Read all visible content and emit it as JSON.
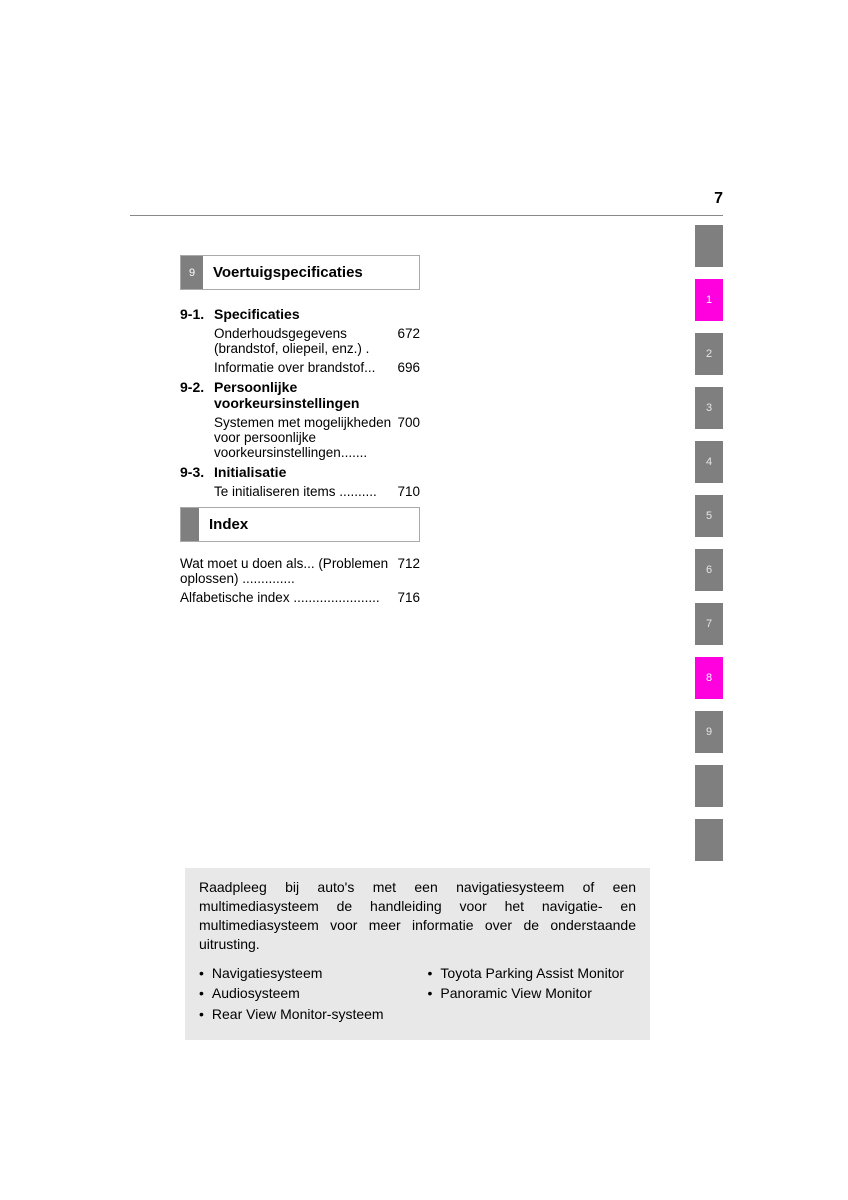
{
  "page_number": "7",
  "section9": {
    "number": "9",
    "title": "Voertuigspecificaties",
    "subs": [
      {
        "num": "9-1.",
        "title": "Specificaties",
        "entries": [
          {
            "label": "Onderhoudsgegevens (brandstof, oliepeil, enz.) .",
            "page": "672"
          },
          {
            "label": "Informatie over brandstof...",
            "page": "696"
          }
        ]
      },
      {
        "num": "9-2.",
        "title": "Persoonlijke voorkeursinstellingen",
        "entries": [
          {
            "label": "Systemen met mogelijkheden voor persoonlijke voorkeursinstellingen.......",
            "page": "700"
          }
        ]
      },
      {
        "num": "9-3.",
        "title": "Initialisatie",
        "entries": [
          {
            "label": "Te initialiseren items ..........",
            "page": "710"
          }
        ]
      }
    ]
  },
  "index": {
    "title": "Index",
    "entries": [
      {
        "label": "Wat moet u doen als... (Problemen oplossen) ..............",
        "page": "712"
      },
      {
        "label": "Alfabetische index .......................",
        "page": "716"
      }
    ]
  },
  "tabs": [
    {
      "label": "",
      "style": "blank"
    },
    {
      "label": "1",
      "style": "pink"
    },
    {
      "label": "2",
      "style": "grey"
    },
    {
      "label": "3",
      "style": "grey"
    },
    {
      "label": "4",
      "style": "grey"
    },
    {
      "label": "5",
      "style": "grey"
    },
    {
      "label": "6",
      "style": "grey"
    },
    {
      "label": "7",
      "style": "grey"
    },
    {
      "label": "8",
      "style": "pink"
    },
    {
      "label": "9",
      "style": "grey"
    },
    {
      "label": "",
      "style": "blank"
    },
    {
      "label": "",
      "style": "blank"
    }
  ],
  "note": {
    "text": "Raadpleeg bij auto's met een navigatiesysteem of een multimediasysteem de handleiding voor het navigatie- en multimediasysteem voor meer informatie over de onderstaande uitrusting.",
    "left": [
      "Navigatiesysteem",
      "Audiosysteem",
      "Rear View Monitor-systeem"
    ],
    "right": [
      "Toyota Parking Assist Monitor",
      "Panoramic View Monitor"
    ]
  },
  "colors": {
    "grey": "#7f7f7f",
    "pink": "#ff00de",
    "note_bg": "#e8e8e8"
  }
}
